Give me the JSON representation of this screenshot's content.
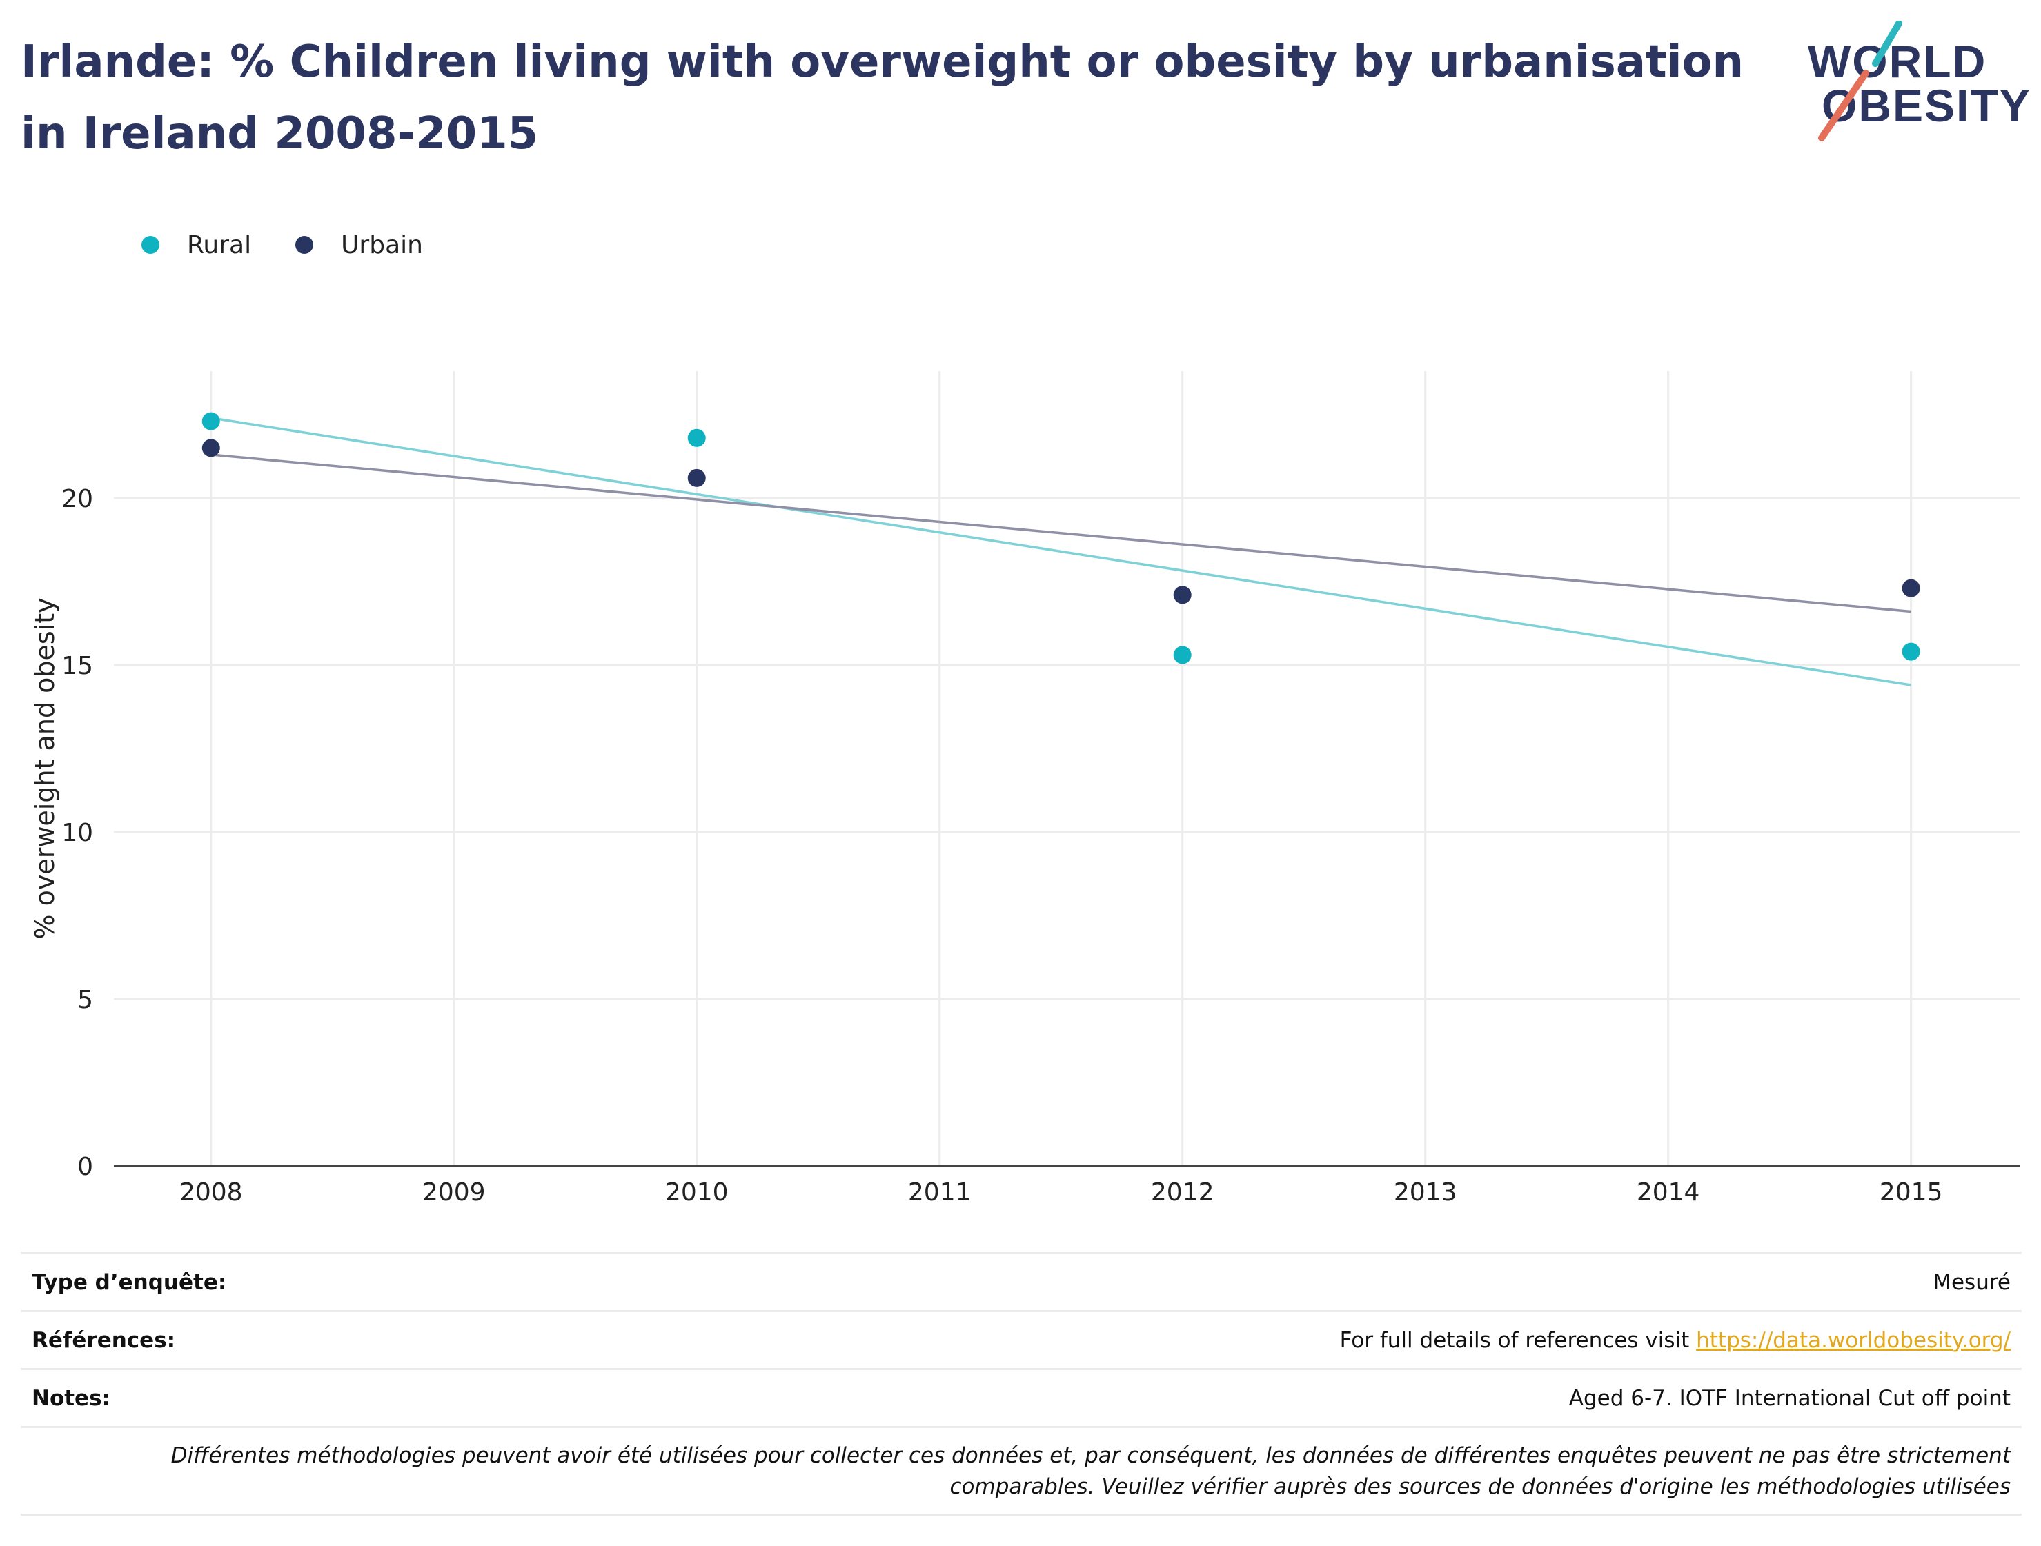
{
  "title": "Irlande: % Children living with overweight or obesity by urbanisation in Ireland 2008-2015",
  "logo": {
    "line1": "WORLD",
    "line2": "OBESITY",
    "accent_teal": "#2bb5bf",
    "accent_red": "#e5705a"
  },
  "chart_data": {
    "type": "scatter",
    "title": "",
    "xlabel": "",
    "ylabel": "% overweight and obesity",
    "x_ticks": [
      "2008",
      "2009",
      "2010",
      "2011",
      "2012",
      "2013",
      "2014",
      "2015"
    ],
    "y_ticks": [
      "0",
      "5",
      "10",
      "15",
      "20"
    ],
    "xlim": [
      2007.6,
      2015.45
    ],
    "ylim": [
      0,
      23.8
    ],
    "grid": true,
    "legend_position": "top-left",
    "series": [
      {
        "name": "Rural",
        "color": "#0fb2c0",
        "x": [
          2008,
          2010,
          2012,
          2015
        ],
        "y": [
          22.3,
          21.8,
          15.3,
          15.4
        ],
        "trend": {
          "x": [
            2008,
            2015
          ],
          "y": [
            22.4,
            14.4
          ],
          "color": "#7fd1d8"
        }
      },
      {
        "name": "Urbain",
        "color": "#283560",
        "x": [
          2008,
          2010,
          2012,
          2015
        ],
        "y": [
          21.5,
          20.6,
          17.1,
          17.3
        ],
        "trend": {
          "x": [
            2008,
            2015
          ],
          "y": [
            21.3,
            16.6
          ],
          "color": "#8f8fa6"
        }
      }
    ]
  },
  "footer": {
    "survey_type_label": "Type d’enquête:",
    "survey_type_value": "Mesuré",
    "references_label": "Références:",
    "references_text": "For full details of references visit ",
    "references_link": "https://data.worldobesity.org/",
    "notes_label": "Notes:",
    "notes_value": "Aged 6-7. IOTF International Cut off point",
    "disclaimer_line1": "Différentes méthodologies peuvent avoir été utilisées pour collecter ces données et, par conséquent, les données de différentes enquêtes peuvent ne pas être strictement",
    "disclaimer_line2": "comparables. Veuillez vérifier auprès des sources de données d'origine les méthodologies utilisées"
  }
}
